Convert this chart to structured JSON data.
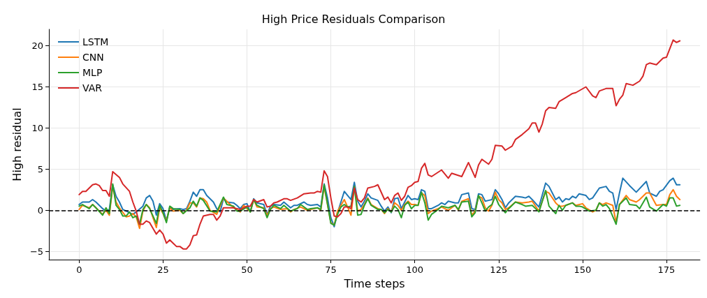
{
  "chart_data": {
    "type": "line",
    "title": "High Price Residuals Comparison",
    "xlabel": "Time steps",
    "ylabel": "High residual",
    "xlim": [
      -9,
      185
    ],
    "xticks": [
      0,
      25,
      50,
      75,
      100,
      125,
      150,
      175
    ],
    "ylim": [
      -6,
      22
    ],
    "yticks": [
      -5,
      0,
      5,
      10,
      15,
      20
    ],
    "grid": true,
    "legend": "top left",
    "line_style": "solid",
    "marker": "none",
    "ref_lines": [
      {
        "axis": "y",
        "value": 0,
        "color": "#000000",
        "line_style": "dashed"
      }
    ],
    "series": [
      {
        "name": "LSTM",
        "color": "#1f77b4",
        "x": [
          0,
          1,
          3,
          4,
          5,
          7,
          8,
          9,
          10,
          11,
          12,
          13,
          14,
          16,
          17,
          19,
          20,
          21,
          22,
          23,
          24,
          25,
          26,
          27,
          28,
          30,
          31,
          32,
          33,
          34,
          35,
          36,
          37,
          38,
          40,
          41,
          42,
          43,
          44,
          46,
          47,
          48,
          49,
          50,
          51,
          52,
          53,
          55,
          56,
          57,
          58,
          60,
          61,
          63,
          64,
          65,
          67,
          68,
          69,
          71,
          72,
          73,
          74,
          75,
          76,
          77,
          79,
          80,
          81,
          82,
          83,
          84,
          85,
          86,
          87,
          89,
          90,
          91,
          92,
          93,
          94,
          95,
          96,
          97,
          98,
          99,
          100,
          101,
          102,
          103,
          104,
          105,
          107,
          108,
          109,
          110,
          112,
          113,
          114,
          116,
          117,
          118,
          119,
          120,
          121,
          122,
          123,
          124,
          125,
          126,
          127,
          128,
          130,
          132,
          133,
          134,
          135,
          137,
          139,
          140,
          142,
          143,
          144,
          145,
          146,
          147,
          148,
          149,
          151,
          152,
          153,
          155,
          157,
          158,
          159,
          160,
          161,
          162,
          164,
          166,
          169,
          170,
          172,
          173,
          174,
          176,
          177,
          178,
          179
        ],
        "values": [
          0.7,
          1.0,
          1.0,
          1.3,
          1.0,
          0.2,
          -0.1,
          0.1,
          3.1,
          1.7,
          1.0,
          0.1,
          -0.1,
          -0.5,
          -0.2,
          0.5,
          1.5,
          1.8,
          1.1,
          -0.6,
          0.8,
          0.2,
          -1.3,
          0.4,
          0.1,
          0.2,
          0.1,
          0.2,
          1.1,
          2.2,
          1.7,
          2.5,
          2.5,
          1.8,
          1.0,
          0.2,
          -0.2,
          1.4,
          1.0,
          0.9,
          0.6,
          0.2,
          0.7,
          0.8,
          -0.2,
          1.4,
          0.9,
          0.7,
          -0.5,
          0.5,
          0.7,
          0.6,
          1.0,
          0.3,
          0.6,
          0.6,
          1.0,
          0.7,
          0.6,
          0.7,
          0.4,
          3.2,
          1.5,
          -0.9,
          -2.0,
          -0.3,
          2.3,
          1.8,
          1.3,
          3.4,
          1.1,
          0.4,
          1.1,
          2.0,
          1.5,
          1.2,
          0.5,
          -0.1,
          0.4,
          -0.3,
          1.4,
          1.5,
          0.2,
          1.0,
          1.8,
          1.3,
          1.4,
          1.3,
          2.5,
          2.3,
          0.2,
          0.2,
          0.6,
          0.9,
          0.7,
          1.1,
          0.9,
          0.9,
          1.9,
          2.1,
          0.2,
          0.1,
          2.0,
          1.9,
          1.1,
          1.2,
          1.3,
          2.5,
          2.0,
          1.3,
          0.3,
          0.9,
          1.7,
          1.6,
          1.5,
          1.7,
          1.3,
          0.4,
          3.3,
          2.9,
          1.3,
          1.6,
          1.0,
          1.4,
          1.3,
          1.7,
          1.5,
          2.0,
          1.8,
          1.3,
          1.5,
          2.7,
          2.9,
          2.3,
          2.1,
          0.1,
          2.1,
          3.9,
          3.0,
          2.2,
          3.5,
          2.1,
          1.7,
          2.3,
          2.5,
          3.6,
          3.9,
          3.1,
          3.1
        ]
      },
      {
        "name": "CNN",
        "color": "#ff7f0e",
        "x": [
          0,
          1,
          3,
          4,
          5,
          7,
          8,
          9,
          10,
          11,
          12,
          14,
          15,
          16,
          17,
          18,
          19,
          20,
          21,
          23,
          24,
          25,
          26,
          27,
          28,
          30,
          31,
          32,
          33,
          34,
          35,
          36,
          37,
          38,
          39,
          41,
          43,
          45,
          46,
          48,
          49,
          51,
          52,
          53,
          55,
          56,
          57,
          58,
          60,
          62,
          63,
          64,
          66,
          68,
          69,
          71,
          72,
          73,
          75,
          76,
          77,
          79,
          80,
          81,
          82,
          83,
          84,
          85,
          86,
          87,
          89,
          90,
          91,
          92,
          93,
          94,
          95,
          96,
          97,
          98,
          99,
          100,
          101,
          102,
          103,
          104,
          105,
          107,
          108,
          110,
          112,
          113,
          114,
          116,
          117,
          118,
          119,
          120,
          121,
          122,
          123,
          124,
          125,
          126,
          127,
          128,
          130,
          132,
          134,
          135,
          137,
          139,
          140,
          142,
          143,
          144,
          145,
          147,
          148,
          150,
          151,
          153,
          154,
          155,
          156,
          157,
          159,
          160,
          161,
          163,
          164,
          166,
          167,
          169,
          170,
          172,
          174,
          175,
          176,
          177,
          178,
          179
        ],
        "values": [
          0.1,
          0.6,
          0.3,
          0.7,
          0.3,
          -0.5,
          0.0,
          -0.6,
          2.9,
          1.0,
          0.3,
          -0.8,
          -0.7,
          -0.4,
          -0.8,
          -2.2,
          -0.1,
          0.7,
          0.3,
          -2.1,
          0.3,
          -0.4,
          -1.3,
          0.3,
          -0.1,
          0.0,
          -0.4,
          0.0,
          0.9,
          0.9,
          0.4,
          1.5,
          1.4,
          1.0,
          0.0,
          -0.5,
          1.5,
          0.7,
          0.3,
          -0.2,
          0.6,
          -0.2,
          1.3,
          0.4,
          0.3,
          -0.6,
          0.2,
          0.4,
          0.1,
          0.2,
          -0.2,
          0.1,
          0.4,
          0.0,
          0.1,
          0.3,
          0.0,
          2.9,
          -1.5,
          -1.8,
          -0.1,
          1.3,
          0.4,
          -0.6,
          2.9,
          -0.1,
          0.1,
          0.7,
          1.5,
          0.7,
          0.2,
          0.1,
          -0.4,
          0.2,
          -0.2,
          0.9,
          0.6,
          0.0,
          0.7,
          1.1,
          0.7,
          0.7,
          0.6,
          2.1,
          1.8,
          -0.4,
          -0.1,
          0.2,
          0.4,
          0.0,
          0.6,
          0.0,
          1.1,
          1.4,
          -0.6,
          -0.1,
          1.7,
          1.5,
          0.3,
          -0.1,
          0.6,
          2.2,
          1.3,
          0.9,
          0.1,
          0.3,
          1.0,
          0.9,
          1.0,
          1.1,
          -0.1,
          2.3,
          2.1,
          0.9,
          0.5,
          0.5,
          0.6,
          0.9,
          0.6,
          0.8,
          0.3,
          -0.2,
          0.0,
          0.9,
          0.7,
          0.9,
          0.6,
          -1.5,
          0.7,
          1.8,
          1.3,
          1.0,
          1.3,
          2.1,
          2.1,
          0.6,
          0.7,
          0.7,
          1.9,
          2.5,
          1.7,
          1.3
        ]
      },
      {
        "name": "MLP",
        "color": "#2ca02c",
        "x": [
          0,
          1,
          3,
          4,
          5,
          7,
          8,
          9,
          10,
          11,
          12,
          13,
          14,
          15,
          16,
          17,
          18,
          19,
          20,
          21,
          23,
          24,
          25,
          26,
          27,
          28,
          30,
          31,
          33,
          34,
          35,
          36,
          37,
          39,
          41,
          43,
          44,
          46,
          47,
          48,
          50,
          51,
          52,
          53,
          55,
          56,
          57,
          58,
          60,
          61,
          63,
          65,
          66,
          68,
          69,
          71,
          72,
          73,
          75,
          76,
          77,
          78,
          79,
          80,
          81,
          82,
          83,
          84,
          85,
          86,
          87,
          89,
          90,
          91,
          92,
          93,
          94,
          95,
          96,
          97,
          98,
          99,
          100,
          101,
          102,
          103,
          104,
          105,
          107,
          108,
          110,
          112,
          113,
          114,
          116,
          117,
          118,
          119,
          120,
          121,
          122,
          123,
          124,
          125,
          127,
          128,
          130,
          132,
          133,
          135,
          137,
          139,
          140,
          142,
          143,
          144,
          145,
          147,
          148,
          149,
          150,
          152,
          154,
          155,
          156,
          157,
          158,
          160,
          161,
          163,
          164,
          166,
          167,
          169,
          170,
          172,
          174,
          175,
          176,
          177,
          178,
          179
        ],
        "values": [
          0.5,
          0.7,
          0.2,
          0.7,
          0.3,
          -0.6,
          0.3,
          -0.4,
          3.2,
          0.6,
          0.1,
          -0.7,
          -0.7,
          -0.2,
          -0.9,
          -0.7,
          -1.7,
          0.1,
          0.7,
          0.2,
          -1.6,
          0.6,
          -0.3,
          -1.5,
          0.5,
          0.2,
          0.1,
          -0.4,
          0.3,
          1.1,
          0.5,
          1.5,
          1.2,
          -0.1,
          -0.2,
          1.6,
          0.7,
          0.5,
          -0.1,
          -0.1,
          0.4,
          -0.2,
          1.3,
          0.6,
          0.2,
          -0.9,
          0.1,
          0.6,
          0.2,
          0.6,
          -0.1,
          0.2,
          0.7,
          0.1,
          0.2,
          0.3,
          0.1,
          3.1,
          -1.6,
          -1.8,
          -0.5,
          0.4,
          0.7,
          0.4,
          0.5,
          2.9,
          -0.6,
          -0.5,
          0.6,
          1.4,
          0.6,
          0.1,
          0.1,
          -0.3,
          0.1,
          -0.2,
          0.5,
          0.1,
          -0.9,
          0.6,
          1.0,
          0.2,
          0.6,
          0.6,
          2.2,
          0.9,
          -1.2,
          -0.5,
          0.1,
          0.5,
          0.3,
          0.6,
          0.1,
          1.0,
          1.1,
          -0.8,
          -0.3,
          1.8,
          0.9,
          -0.1,
          0.4,
          0.7,
          1.7,
          0.7,
          -0.3,
          0.2,
          1.0,
          0.7,
          0.5,
          0.6,
          -0.2,
          2.4,
          0.5,
          -0.4,
          0.6,
          0.0,
          0.6,
          0.9,
          0.5,
          0.5,
          0.4,
          -0.1,
          0.0,
          0.9,
          0.5,
          0.7,
          0.2,
          -1.7,
          0.7,
          1.5,
          0.7,
          0.6,
          0.2,
          1.6,
          0.4,
          -0.1,
          0.7,
          0.5,
          1.5,
          1.5,
          0.5,
          0.6
        ]
      },
      {
        "name": "VAR",
        "color": "#d62728",
        "x": [
          0,
          1,
          2,
          4,
          5,
          6,
          7,
          8,
          9,
          10,
          12,
          13,
          15,
          16,
          17,
          18,
          19,
          20,
          21,
          23,
          24,
          25,
          26,
          27,
          28,
          29,
          30,
          31,
          32,
          33,
          34,
          35,
          36,
          37,
          39,
          40,
          41,
          42,
          43,
          46,
          48,
          50,
          51,
          52,
          53,
          55,
          56,
          57,
          58,
          59,
          61,
          62,
          63,
          65,
          67,
          69,
          70,
          71,
          72,
          73,
          74,
          75,
          76,
          77,
          78,
          79,
          80,
          81,
          82,
          83,
          84,
          85,
          86,
          88,
          89,
          91,
          92,
          93,
          94,
          95,
          96,
          97,
          98,
          99,
          100,
          101,
          102,
          103,
          104,
          105,
          108,
          110,
          111,
          114,
          116,
          118,
          119,
          120,
          122,
          123,
          124,
          126,
          127,
          129,
          130,
          132,
          134,
          135,
          136,
          137,
          138,
          139,
          140,
          142,
          143,
          145,
          147,
          148,
          151,
          153,
          154,
          155,
          157,
          159,
          160,
          161,
          162,
          163,
          165,
          167,
          168,
          169,
          170,
          172,
          174,
          175,
          177,
          178,
          179
        ],
        "values": [
          1.9,
          2.3,
          2.3,
          3.1,
          3.2,
          3.0,
          2.4,
          2.4,
          1.7,
          4.7,
          4.0,
          3.2,
          2.3,
          1.0,
          -0.1,
          -1.7,
          -1.7,
          -1.3,
          -1.5,
          -2.9,
          -2.4,
          -2.9,
          -4.0,
          -3.6,
          -4.0,
          -4.4,
          -4.4,
          -4.7,
          -4.7,
          -4.2,
          -3.1,
          -3.0,
          -1.7,
          -0.7,
          -0.5,
          -0.5,
          -1.2,
          -0.7,
          0.3,
          0.3,
          0.1,
          0.5,
          0.5,
          1.3,
          1.0,
          1.3,
          0.4,
          0.5,
          0.9,
          1.0,
          1.4,
          1.4,
          1.2,
          1.5,
          2.0,
          2.1,
          2.1,
          2.3,
          2.2,
          4.8,
          4.1,
          1.5,
          -0.7,
          -0.8,
          -0.4,
          0.4,
          0.4,
          0.2,
          2.7,
          1.3,
          1.0,
          1.5,
          2.7,
          2.9,
          3.1,
          1.3,
          1.6,
          0.9,
          1.8,
          2.1,
          1.2,
          1.7,
          2.8,
          3.0,
          3.4,
          3.5,
          5.1,
          5.7,
          4.3,
          4.1,
          4.9,
          3.9,
          4.5,
          4.1,
          5.8,
          4.0,
          5.5,
          6.2,
          5.6,
          6.2,
          7.9,
          7.8,
          7.3,
          7.8,
          8.6,
          9.2,
          9.9,
          10.6,
          10.6,
          9.5,
          10.5,
          12.1,
          12.5,
          12.4,
          13.2,
          13.7,
          14.2,
          14.3,
          15.0,
          13.9,
          13.7,
          14.5,
          14.8,
          14.8,
          12.7,
          13.5,
          14.0,
          15.4,
          15.2,
          15.7,
          16.3,
          17.7,
          17.9,
          17.7,
          18.5,
          18.6,
          20.7,
          20.4,
          20.6
        ]
      }
    ]
  }
}
